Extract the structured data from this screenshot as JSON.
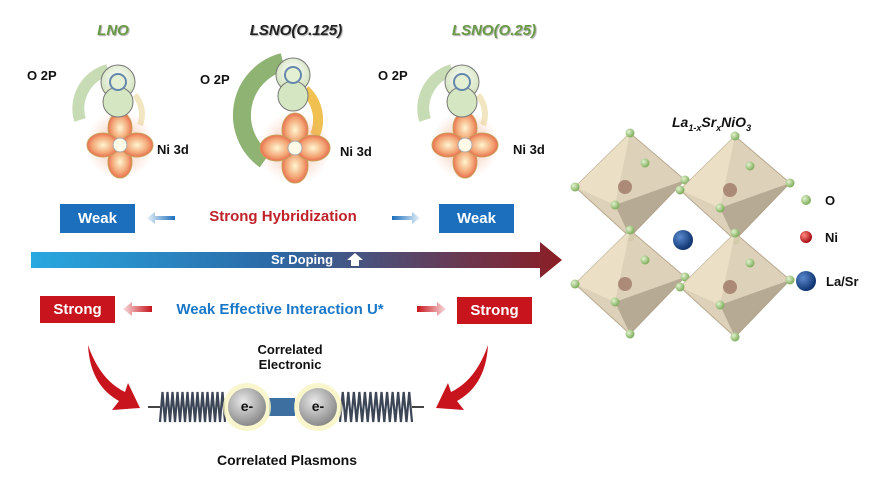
{
  "orbitals": [
    {
      "title": "LNO",
      "title_color": "#6a9a46",
      "o_label": "O 2P",
      "ni_label": "Ni 3d"
    },
    {
      "title": "LSNO(O.125)",
      "title_color": "#222222",
      "o_label": "O 2P",
      "ni_label": "Ni 3d"
    },
    {
      "title": "LSNO(O.25)",
      "title_color": "#6a9a46",
      "o_label": "O 2P",
      "ni_label": "Ni 3d"
    }
  ],
  "hybridization": {
    "left": "Weak",
    "center": "Strong Hybridization",
    "right": "Weak",
    "box_color": "#1b6fbd",
    "text_color": "#c0222a"
  },
  "doping_arrow": {
    "label": "Sr Doping",
    "start_color": "#29a8e0",
    "end_color": "#8b1e24"
  },
  "interaction": {
    "left": "Strong",
    "center": "Weak Effective Interaction U*",
    "right": "Strong",
    "box_color": "#c8141c",
    "text_color": "#1b78c8"
  },
  "plasmon": {
    "top_label_1": "Correlated",
    "top_label_2": "Electronic",
    "electron_1": "e-",
    "electron_2": "e-",
    "bottom_label": "Correlated Plasmons"
  },
  "crystal": {
    "formula": {
      "base1": "La",
      "sub1": "1-x",
      "base2": "Sr",
      "sub2": "x",
      "base3": "NiO",
      "sub3": "3"
    },
    "legend": [
      {
        "label": "O",
        "color": "#9cc87a"
      },
      {
        "label": "Ni",
        "color": "#c8141c"
      },
      {
        "label": "La/Sr",
        "color": "#1a5096"
      }
    ]
  }
}
